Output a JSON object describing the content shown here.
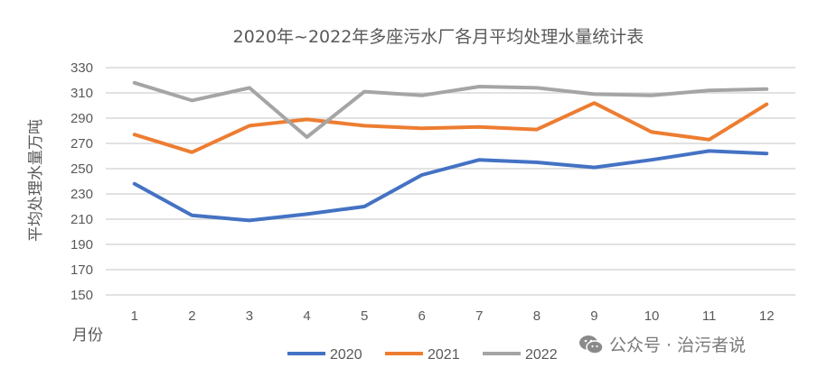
{
  "chart_data": {
    "type": "line",
    "title": "2020年~2022年多座污水厂各月平均处理水量统计表",
    "xlabel": "月份",
    "ylabel": "平均处理水量万吨",
    "categories": [
      "1",
      "2",
      "3",
      "4",
      "5",
      "6",
      "7",
      "8",
      "9",
      "10",
      "11",
      "12"
    ],
    "yticks": [
      "150",
      "170",
      "190",
      "210",
      "230",
      "250",
      "270",
      "290",
      "310",
      "330"
    ],
    "ylim": [
      150,
      330
    ],
    "grid": true,
    "legend_position": "bottom",
    "series": [
      {
        "name": "2020",
        "color": "#4472C4",
        "values": [
          238,
          213,
          209,
          214,
          220,
          245,
          257,
          255,
          251,
          257,
          264,
          262
        ]
      },
      {
        "name": "2021",
        "color": "#ED7D31",
        "values": [
          277,
          263,
          284,
          289,
          284,
          282,
          283,
          281,
          302,
          279,
          273,
          301
        ]
      },
      {
        "name": "2022",
        "color": "#A5A5A5",
        "values": [
          318,
          304,
          314,
          275,
          311,
          308,
          315,
          314,
          309,
          308,
          312,
          313
        ]
      }
    ]
  },
  "watermark": {
    "text": "公众号 · 治污者说",
    "icon": "wechat-icon"
  }
}
